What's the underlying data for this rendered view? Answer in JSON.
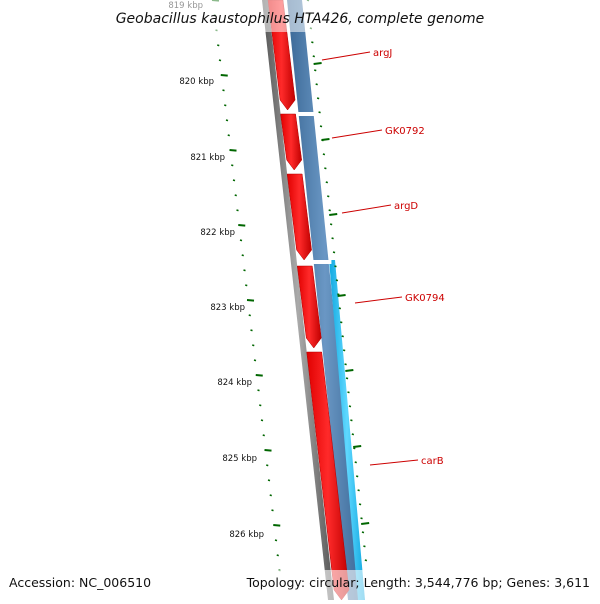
{
  "title": "Geobacillus kaustophilus HTA426, complete genome",
  "accession_text": "Accession: NC_006510",
  "topology_text": "Topology: circular; Length: 3,544,776 bp; Genes: 3,611",
  "colors": {
    "backbone": "#888888",
    "reverse_feature": "#ff0000",
    "forward_feature": "#4f7fb0",
    "forward_highlight": "#1ec0f0",
    "tick": "#006600",
    "gene_label": "#cc0000"
  },
  "ruler": {
    "kbp_labels": [
      "819 kbp",
      "820 kbp",
      "821 kbp",
      "822 kbp",
      "823 kbp",
      "824 kbp",
      "825 kbp",
      "826 kbp"
    ]
  },
  "genes": [
    {
      "name": "argJ"
    },
    {
      "name": "GK0792"
    },
    {
      "name": "argD"
    },
    {
      "name": "GK0794"
    },
    {
      "name": "carB"
    }
  ]
}
